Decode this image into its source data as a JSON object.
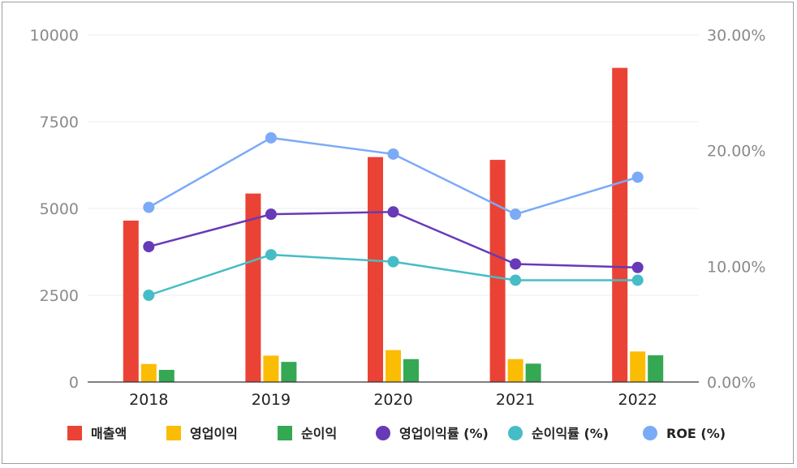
{
  "chart_data": {
    "type": "bar",
    "categories": [
      "2018",
      "2019",
      "2020",
      "2021",
      "2022"
    ],
    "y_left": {
      "range": [
        0,
        10000
      ],
      "ticks": [
        "0",
        "2500",
        "5000",
        "7500",
        "10000"
      ]
    },
    "y_right": {
      "range": [
        0,
        30
      ],
      "ticks": [
        "0.00%",
        "10.00%",
        "20.00%",
        "30.00%"
      ]
    },
    "grid": true,
    "legend_position": "bottom",
    "series": [
      {
        "name": "매출액",
        "type": "bar",
        "axis": "left",
        "color": "#ea4335",
        "values": [
          4650,
          5430,
          6480,
          6400,
          9050
        ]
      },
      {
        "name": "영업이익",
        "type": "bar",
        "axis": "left",
        "color": "#fbbc04",
        "values": [
          520,
          760,
          920,
          660,
          880
        ]
      },
      {
        "name": "순이익",
        "type": "bar",
        "axis": "left",
        "color": "#34a853",
        "values": [
          350,
          580,
          660,
          530,
          770
        ]
      },
      {
        "name": "영업이익률 (%)",
        "type": "line",
        "axis": "right",
        "color": "#673ab7",
        "values": [
          11.7,
          14.5,
          14.7,
          10.2,
          9.9
        ]
      },
      {
        "name": "순이익률 (%)",
        "type": "line",
        "axis": "right",
        "color": "#46bdc6",
        "values": [
          7.5,
          11.0,
          10.4,
          8.8,
          8.8
        ]
      },
      {
        "name": "ROE (%)",
        "type": "line",
        "axis": "right",
        "color": "#7baaf7",
        "values": [
          15.1,
          21.1,
          19.7,
          14.5,
          17.7
        ]
      }
    ]
  }
}
